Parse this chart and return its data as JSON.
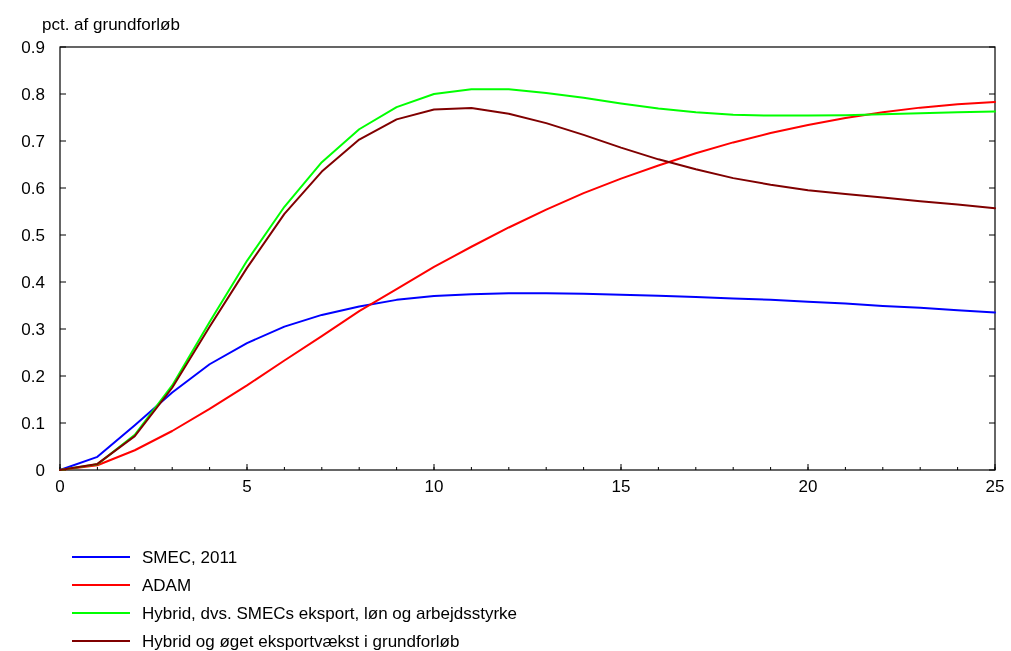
{
  "chart_data": {
    "type": "line",
    "ylabel": "pct. af grundforløb",
    "x": [
      0,
      1,
      2,
      3,
      4,
      5,
      6,
      7,
      8,
      9,
      10,
      11,
      12,
      13,
      14,
      15,
      16,
      17,
      18,
      19,
      20,
      21,
      22,
      23,
      24,
      25
    ],
    "xlim": [
      0,
      25
    ],
    "xticks": [
      0,
      5,
      10,
      15,
      20,
      25
    ],
    "ylim": [
      0,
      0.9
    ],
    "yticks": [
      0,
      0.1,
      0.2,
      0.3,
      0.4,
      0.5,
      0.6,
      0.7,
      0.8,
      0.9
    ],
    "grid": false,
    "legend": "bottom",
    "line_style": "solid",
    "marker": "none",
    "series": [
      {
        "name": "SMEC, 2011",
        "color": "#0000ff",
        "values": [
          0,
          0.028,
          0.095,
          0.165,
          0.225,
          0.27,
          0.305,
          0.33,
          0.348,
          0.362,
          0.37,
          0.374,
          0.376,
          0.376,
          0.375,
          0.373,
          0.371,
          0.368,
          0.365,
          0.362,
          0.358,
          0.354,
          0.349,
          0.345,
          0.34,
          0.335
        ]
      },
      {
        "name": "ADAM",
        "color": "#ff0000",
        "values": [
          0,
          0.01,
          0.042,
          0.083,
          0.13,
          0.18,
          0.233,
          0.285,
          0.338,
          0.385,
          0.432,
          0.475,
          0.516,
          0.554,
          0.589,
          0.62,
          0.648,
          0.674,
          0.697,
          0.717,
          0.734,
          0.749,
          0.761,
          0.771,
          0.778,
          0.783
        ]
      },
      {
        "name": "Hybrid, dvs. SMECs eksport, løn og arbejdsstyrke",
        "color": "#00ff00",
        "values": [
          0,
          0.012,
          0.075,
          0.18,
          0.315,
          0.445,
          0.56,
          0.655,
          0.725,
          0.772,
          0.8,
          0.81,
          0.81,
          0.802,
          0.792,
          0.78,
          0.769,
          0.761,
          0.756,
          0.754,
          0.754,
          0.755,
          0.757,
          0.759,
          0.761,
          0.763
        ]
      },
      {
        "name": "Hybrid og øget eksportvækst i grundforløb",
        "color": "#800000",
        "values": [
          0,
          0.013,
          0.072,
          0.175,
          0.305,
          0.43,
          0.545,
          0.635,
          0.703,
          0.746,
          0.767,
          0.77,
          0.758,
          0.738,
          0.713,
          0.686,
          0.661,
          0.64,
          0.621,
          0.607,
          0.595,
          0.587,
          0.58,
          0.572,
          0.565,
          0.557
        ]
      }
    ]
  }
}
